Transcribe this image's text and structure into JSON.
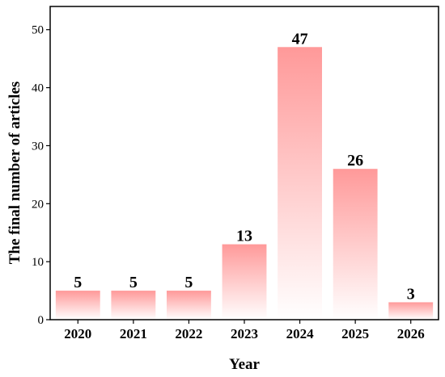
{
  "chart_data": {
    "type": "bar",
    "categories": [
      "2020",
      "2021",
      "2022",
      "2023",
      "2024",
      "2025",
      "2026"
    ],
    "values": [
      5,
      5,
      5,
      13,
      47,
      26,
      3
    ],
    "title": "",
    "xlabel": "Year",
    "ylabel": "The final number of articles",
    "ylim": [
      0,
      54
    ],
    "yticks": [
      0,
      10,
      20,
      30,
      40,
      50
    ],
    "grid": false,
    "legend": "none",
    "bar_color_top": "#ff9999",
    "bar_color_bottom": "#ffffff"
  }
}
